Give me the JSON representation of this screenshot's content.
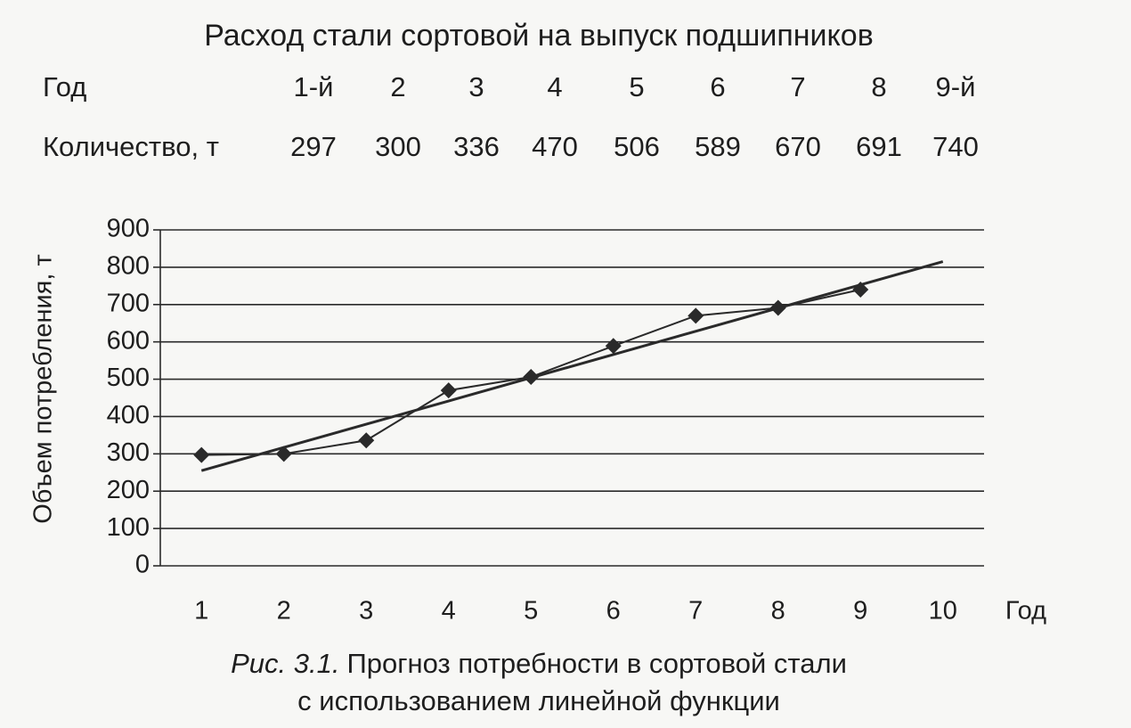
{
  "title": "Расход стали сортовой на выпуск подшипников",
  "table": {
    "rows": [
      [
        "Год",
        "1-й",
        "2",
        "3",
        "4",
        "5",
        "6",
        "7",
        "8",
        "9-й"
      ],
      [
        "Количество, т",
        "297",
        "300",
        "336",
        "470",
        "506",
        "589",
        "670",
        "691",
        "740"
      ]
    ]
  },
  "chart_data": {
    "type": "line",
    "y_label": "Объем потребления, т",
    "x_label": "Год",
    "xlim": [
      0.5,
      10.5
    ],
    "xticks": [
      1,
      2,
      3,
      4,
      5,
      6,
      7,
      8,
      9,
      10
    ],
    "ylim": [
      0,
      900
    ],
    "yticks": [
      0,
      100,
      200,
      300,
      400,
      500,
      600,
      700,
      800,
      900
    ],
    "grid": true,
    "series": [
      {
        "color": "#2a2a2a",
        "marker": "diamond",
        "x": [
          1,
          2,
          3,
          4,
          5,
          6,
          7,
          8,
          9
        ],
        "values": [
          297,
          300,
          336,
          470,
          506,
          589,
          670,
          691,
          740
        ]
      },
      {
        "color": "#2a2a2a",
        "x": [
          1,
          10
        ],
        "values": [
          255,
          815
        ]
      }
    ]
  },
  "caption": {
    "label": "Рис. 3.1.",
    "lines": [
      "Прогноз потребности в сортовой стали",
      "с использованием линейной функции"
    ]
  }
}
